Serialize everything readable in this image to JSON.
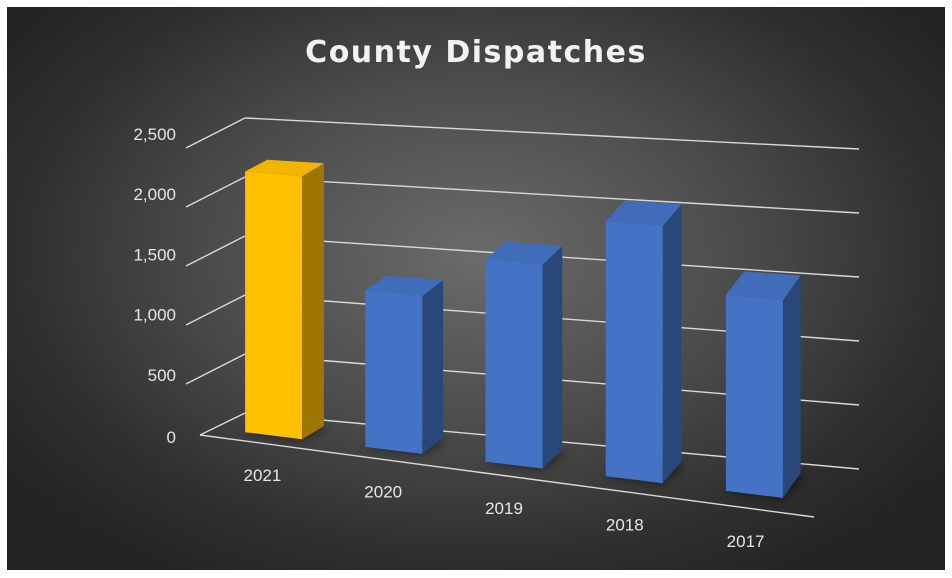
{
  "chart_data": {
    "type": "bar",
    "title": "County Dispatches",
    "xlabel": "",
    "ylabel": "",
    "categories": [
      "2021",
      "2020",
      "2019",
      "2018",
      "2017"
    ],
    "values": [
      2200,
      1300,
      1650,
      2050,
      1550
    ],
    "ylim": [
      0,
      2500
    ],
    "yticks": [
      0,
      500,
      1000,
      1500,
      2000,
      2500
    ],
    "ytick_labels": [
      "0",
      "500",
      "1,000",
      "1,500",
      "2,000",
      "2,500"
    ],
    "grid": true,
    "legend": "none",
    "three_d": true,
    "bar_colors": [
      "#ffc000",
      "#4472c4",
      "#4472c4",
      "#4472c4",
      "#4472c4"
    ]
  }
}
